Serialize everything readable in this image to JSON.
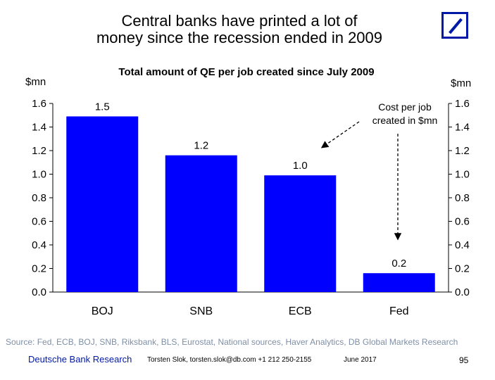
{
  "slide": {
    "title_line1": "Central banks have printed a lot of",
    "title_line2": "money since the recession ended in 2009",
    "source": "Source: Fed, ECB, BOJ, SNB, Riksbank, BLS, Eurostat, National sources, Haver Analytics, DB Global Markets Research",
    "footer": {
      "org": "Deutsche Bank Research",
      "contact": "Torsten Slok, torsten.slok@db.com  +1 212 250-2155",
      "date": "June 2017",
      "page": "95"
    },
    "logo_icon": "deutsche-bank-logo-icon",
    "accent_color": "#0018A8"
  },
  "chart_data": {
    "type": "bar",
    "title": "Total amount of QE per job created since July 2009",
    "ylabel_left": "$mn",
    "ylabel_right": "$mn",
    "categories": [
      "BOJ",
      "SNB",
      "ECB",
      "Fed"
    ],
    "values": [
      1.49,
      1.16,
      0.99,
      0.16
    ],
    "data_labels": [
      "1.5",
      "1.2",
      "1.0",
      "0.2"
    ],
    "ylim": [
      0.0,
      1.6
    ],
    "yticks": [
      "0.0",
      "0.2",
      "0.4",
      "0.6",
      "0.8",
      "1.0",
      "1.2",
      "1.4",
      "1.6"
    ],
    "bar_color": "#0000FF",
    "grid": false,
    "annotation": {
      "line1": "Cost per job",
      "line2": "created in $mn"
    }
  }
}
